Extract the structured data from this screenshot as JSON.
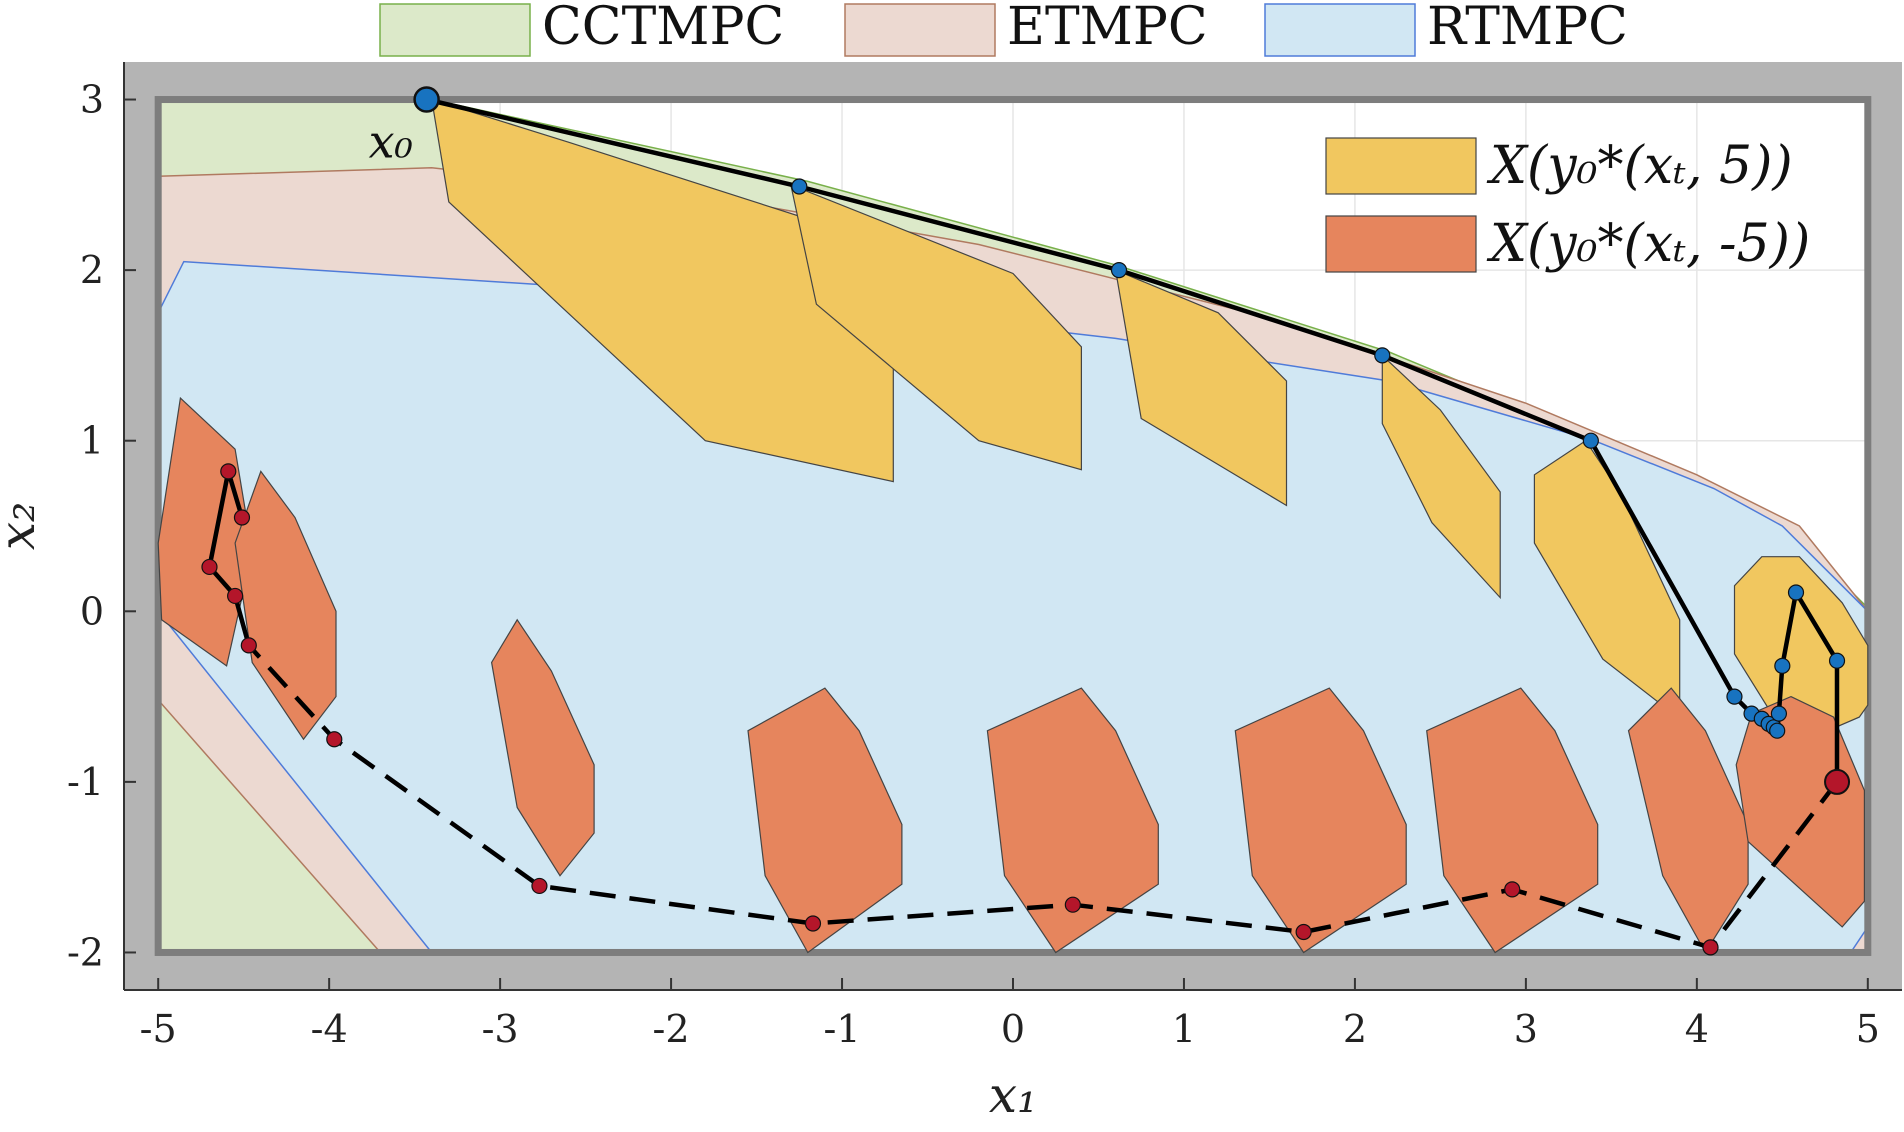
{
  "chart_data": {
    "type": "scatter",
    "title": "",
    "xlabel": "x₁",
    "ylabel": "x₂",
    "xlim": [
      -5.2,
      5.2
    ],
    "ylim": [
      -2.22,
      3.22
    ],
    "xticks": [
      -5,
      -4,
      -3,
      -2,
      -1,
      0,
      1,
      2,
      3,
      4,
      5
    ],
    "yticks": [
      -2,
      -1,
      0,
      1,
      2,
      3
    ],
    "grid": true,
    "legend_top": {
      "placement": "top-center",
      "entries": [
        {
          "label": "CCTMPC",
          "color": "#dce9c9",
          "edge": "#78b04a"
        },
        {
          "label": "ETMPC",
          "color": "#ecd9d1",
          "edge": "#b07a60"
        },
        {
          "label": "RTMPC",
          "color": "#d1e7f3",
          "edge": "#4f7bd9"
        }
      ]
    },
    "legend_inner": {
      "placement": "top-right",
      "entries": [
        {
          "label": "X(y₀*(xₜ, 5))",
          "color": "#f1c75f"
        },
        {
          "label": "X(y₀*(xₜ, -5))",
          "color": "#e6855d"
        }
      ]
    },
    "annotation": "x₀",
    "state_constraint": {
      "x1": [
        -5,
        5
      ],
      "x2": [
        -2,
        3
      ]
    },
    "regions": {
      "CCTMPC": [
        [
          -5,
          3
        ],
        [
          -3.4,
          3
        ],
        [
          -1.2,
          2.52
        ],
        [
          0.6,
          2.03
        ],
        [
          2.2,
          1.52
        ],
        [
          3.4,
          1.02
        ],
        [
          4.1,
          0.68
        ],
        [
          4.6,
          0.42
        ],
        [
          5,
          0.02
        ],
        [
          5,
          -2
        ],
        [
          -5,
          -2
        ]
      ],
      "ETMPC": [
        [
          -5,
          2.55
        ],
        [
          -3.4,
          2.6
        ],
        [
          -1.6,
          2.4
        ],
        [
          -0.2,
          2.15
        ],
        [
          1.5,
          1.72
        ],
        [
          3,
          1.22
        ],
        [
          4,
          0.8
        ],
        [
          4.6,
          0.5
        ],
        [
          5,
          0
        ],
        [
          5,
          -2
        ],
        [
          -3.7,
          -2
        ],
        [
          -5,
          -0.52
        ]
      ],
      "RTMPC": [
        [
          -5,
          1.75
        ],
        [
          -4.85,
          2.05
        ],
        [
          -1.3,
          1.82
        ],
        [
          0.6,
          1.6
        ],
        [
          2.2,
          1.35
        ],
        [
          3.4,
          1
        ],
        [
          4.1,
          0.72
        ],
        [
          4.5,
          0.5
        ],
        [
          4.8,
          0.2
        ],
        [
          5,
          0
        ],
        [
          5,
          -1.85
        ],
        [
          4.9,
          -2
        ],
        [
          -3.4,
          -2
        ],
        [
          -5,
          0
        ]
      ]
    },
    "tube_positive": {
      "name": "X(y₀*(xₜ, 5))",
      "cells": [
        [
          [
            -3.4,
            3
          ],
          [
            -3.3,
            2.4
          ],
          [
            -1.8,
            1
          ],
          [
            -0.7,
            0.76
          ],
          [
            -0.7,
            1.55
          ],
          [
            -1.2,
            2.3
          ],
          [
            -2.6,
            2.75
          ]
        ],
        [
          [
            -1.3,
            2.5
          ],
          [
            -1.15,
            1.8
          ],
          [
            -0.2,
            1
          ],
          [
            0.4,
            0.83
          ],
          [
            0.4,
            1.55
          ],
          [
            0,
            1.98
          ]
        ],
        [
          [
            0.6,
            2
          ],
          [
            0.75,
            1.13
          ],
          [
            1.6,
            0.62
          ],
          [
            1.6,
            1.35
          ],
          [
            1.2,
            1.75
          ]
        ],
        [
          [
            2.16,
            1.5
          ],
          [
            2.16,
            1.1
          ],
          [
            2.45,
            0.52
          ],
          [
            2.85,
            0.08
          ],
          [
            2.85,
            0.7
          ],
          [
            2.5,
            1.18
          ]
        ],
        [
          [
            3.35,
            1
          ],
          [
            3.05,
            0.8
          ],
          [
            3.05,
            0.4
          ],
          [
            3.45,
            -0.28
          ],
          [
            3.9,
            -0.63
          ],
          [
            3.9,
            -0.05
          ],
          [
            3.55,
            0.7
          ]
        ],
        [
          [
            4.22,
            0.15
          ],
          [
            4.22,
            -0.25
          ],
          [
            4.45,
            -0.62
          ],
          [
            4.72,
            -0.72
          ],
          [
            4.95,
            -0.62
          ],
          [
            5,
            -0.55
          ],
          [
            5,
            -0.2
          ],
          [
            4.85,
            0.05
          ],
          [
            4.6,
            0.32
          ],
          [
            4.38,
            0.32
          ]
        ]
      ],
      "x": [
        -3.43,
        -1.25,
        0.62,
        2.16,
        3.38,
        4.22,
        4.32,
        4.38,
        4.42,
        4.45,
        4.47,
        4.48,
        4.5,
        4.58,
        4.82,
        4.82
      ],
      "y": [
        3.0,
        2.49,
        2.0,
        1.5,
        1.0,
        -0.5,
        -0.6,
        -0.63,
        -0.66,
        -0.68,
        -0.7,
        -0.6,
        -0.32,
        0.11,
        -0.29,
        -1.0
      ]
    },
    "tube_negative": {
      "name": "X(y₀*(xₜ, -5))",
      "cells": [
        [
          [
            -4.87,
            1.25
          ],
          [
            -4.55,
            0.95
          ],
          [
            -4.45,
            0.35
          ],
          [
            -4.6,
            -0.32
          ],
          [
            -4.98,
            -0.05
          ],
          [
            -5,
            0.4
          ]
        ],
        [
          [
            -4.4,
            0.82
          ],
          [
            -4.2,
            0.55
          ],
          [
            -3.96,
            0
          ],
          [
            -3.96,
            -0.5
          ],
          [
            -4.15,
            -0.75
          ],
          [
            -4.45,
            -0.3
          ],
          [
            -4.55,
            0.4
          ]
        ],
        [
          [
            -2.9,
            -0.05
          ],
          [
            -2.7,
            -0.35
          ],
          [
            -2.45,
            -0.9
          ],
          [
            -2.45,
            -1.3
          ],
          [
            -2.65,
            -1.55
          ],
          [
            -2.9,
            -1.15
          ],
          [
            -3.05,
            -0.3
          ]
        ],
        [
          [
            -1.1,
            -0.45
          ],
          [
            -0.9,
            -0.7
          ],
          [
            -0.65,
            -1.25
          ],
          [
            -0.65,
            -1.6
          ],
          [
            -1.2,
            -2
          ],
          [
            -1.45,
            -1.55
          ],
          [
            -1.55,
            -0.7
          ]
        ],
        [
          [
            0.4,
            -0.45
          ],
          [
            0.6,
            -0.7
          ],
          [
            0.85,
            -1.25
          ],
          [
            0.85,
            -1.6
          ],
          [
            0.25,
            -2
          ],
          [
            -0.05,
            -1.55
          ],
          [
            -0.15,
            -0.7
          ]
        ],
        [
          [
            1.85,
            -0.45
          ],
          [
            2.05,
            -0.7
          ],
          [
            2.3,
            -1.25
          ],
          [
            2.3,
            -1.6
          ],
          [
            1.7,
            -2
          ],
          [
            1.4,
            -1.55
          ],
          [
            1.3,
            -0.7
          ]
        ],
        [
          [
            2.97,
            -0.45
          ],
          [
            3.17,
            -0.7
          ],
          [
            3.42,
            -1.25
          ],
          [
            3.42,
            -1.6
          ],
          [
            2.82,
            -2
          ],
          [
            2.52,
            -1.55
          ],
          [
            2.42,
            -0.7
          ]
        ],
        [
          [
            3.85,
            -0.45
          ],
          [
            4.05,
            -0.7
          ],
          [
            4.3,
            -1.25
          ],
          [
            4.3,
            -1.6
          ],
          [
            4.05,
            -2
          ],
          [
            3.8,
            -1.55
          ],
          [
            3.6,
            -0.7
          ]
        ],
        [
          [
            4.55,
            -0.5
          ],
          [
            4.8,
            -0.62
          ],
          [
            4.98,
            -1.05
          ],
          [
            4.98,
            -1.7
          ],
          [
            4.85,
            -1.85
          ],
          [
            4.3,
            -1.35
          ],
          [
            4.23,
            -0.9
          ],
          [
            4.32,
            -0.6
          ]
        ]
      ],
      "x": [
        4.82,
        4.08,
        2.92,
        1.7,
        0.35,
        -1.17,
        -2.77,
        -3.97,
        -4.47,
        -4.55,
        -4.7,
        -4.59,
        -4.51
      ],
      "y": [
        -1.0,
        -1.97,
        -1.63,
        -1.88,
        -1.72,
        -1.83,
        -1.61,
        -0.75,
        -0.2,
        0.09,
        0.26,
        0.82,
        0.55
      ]
    }
  }
}
